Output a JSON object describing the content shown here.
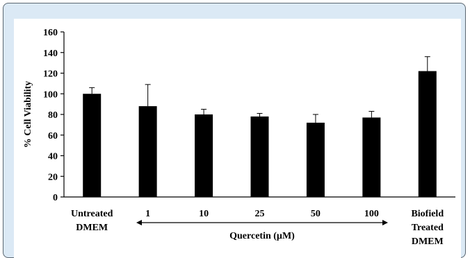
{
  "chart_data": {
    "type": "bar",
    "categories": [
      [
        "Untreated",
        "DMEM"
      ],
      [
        "1"
      ],
      [
        "10"
      ],
      [
        "25"
      ],
      [
        "50"
      ],
      [
        "100"
      ],
      [
        "Biofield",
        "Treated",
        "DMEM"
      ]
    ],
    "values": [
      100,
      88,
      80,
      78,
      72,
      77,
      122
    ],
    "errors": [
      6,
      21,
      5,
      3,
      8,
      6,
      14
    ],
    "ylabel": "% Cell Viability",
    "xlabel": "",
    "ylim": [
      0,
      160
    ],
    "yticks": [
      0,
      20,
      40,
      60,
      80,
      100,
      120,
      140,
      160
    ],
    "annotation": "Quercetin (µM)",
    "bar_color": "#000000",
    "grid": false
  },
  "colors": {
    "frame_background": "#dbe9f5",
    "frame_border": "#5a6670"
  }
}
